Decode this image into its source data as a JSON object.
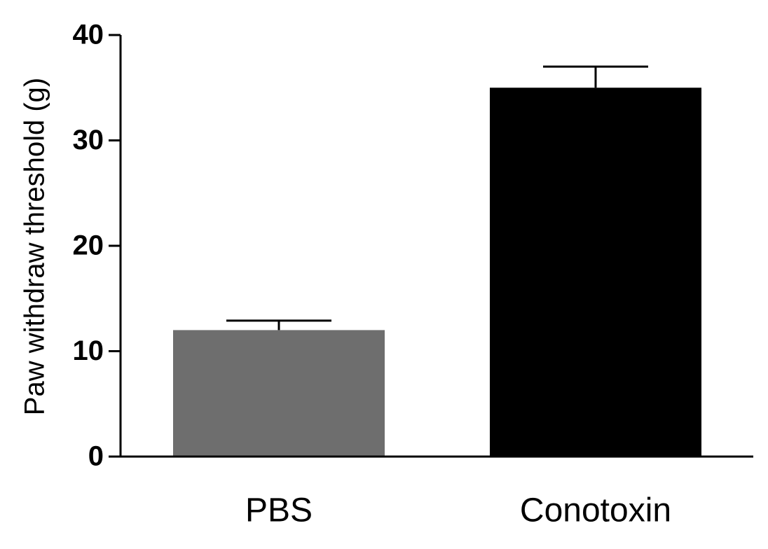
{
  "chart_data": {
    "type": "bar",
    "y_label": "Paw withdraw threshold (g)",
    "categories": [
      "PBS",
      "Conotoxin"
    ],
    "values": [
      12,
      35
    ],
    "errors": [
      0.9,
      2
    ],
    "colors": [
      "#6e6e6e",
      "#000000"
    ],
    "ylim": [
      0,
      40
    ],
    "yticks": [
      0,
      10,
      20,
      30,
      40
    ],
    "grid": false
  }
}
